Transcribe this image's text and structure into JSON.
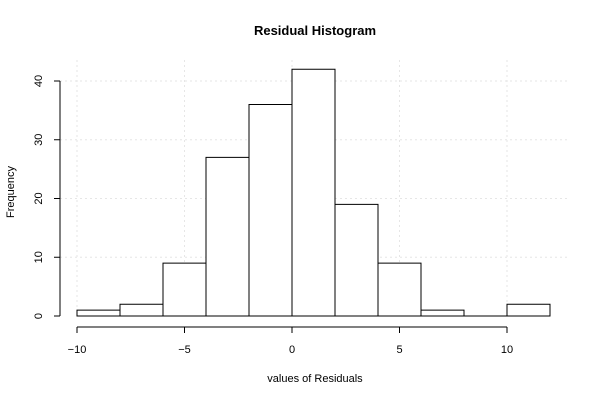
{
  "chart_data": {
    "type": "bar",
    "title": "Residual Histogram",
    "xlabel": "values of Residuals",
    "ylabel": "Frequency",
    "bins": [
      {
        "start": -10,
        "end": -8,
        "count": 1
      },
      {
        "start": -8,
        "end": -6,
        "count": 2
      },
      {
        "start": -6,
        "end": -4,
        "count": 9
      },
      {
        "start": -4,
        "end": -2,
        "count": 27
      },
      {
        "start": -2,
        "end": 0,
        "count": 36
      },
      {
        "start": 0,
        "end": 2,
        "count": 42
      },
      {
        "start": 2,
        "end": 4,
        "count": 19
      },
      {
        "start": 4,
        "end": 6,
        "count": 9
      },
      {
        "start": 6,
        "end": 8,
        "count": 1
      },
      {
        "start": 8,
        "end": 10,
        "count": 0
      },
      {
        "start": 10,
        "end": 12,
        "count": 2
      }
    ],
    "x_ticks": [
      -10,
      -5,
      0,
      5,
      10
    ],
    "y_ticks": [
      0,
      10,
      20,
      30,
      40
    ],
    "xlim": [
      -10,
      12
    ],
    "ylim": [
      0,
      42
    ],
    "grid": true,
    "colors": {
      "bar_fill": "#ffffff",
      "bar_stroke": "#000000",
      "grid": "#e6e6e6"
    }
  }
}
